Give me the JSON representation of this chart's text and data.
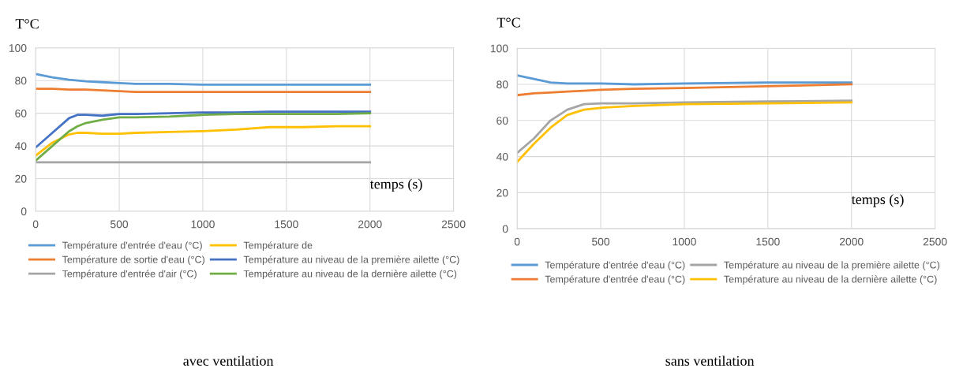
{
  "chart_data": [
    {
      "type": "line",
      "title": "avec ventilation",
      "ylabel": "T°C",
      "xlabel": "temps (s)",
      "xlim": [
        0,
        2500
      ],
      "xticks": [
        0,
        500,
        1000,
        1500,
        2000,
        2500
      ],
      "ylim": [
        0,
        100
      ],
      "yticks": [
        0,
        20,
        40,
        60,
        80,
        100
      ],
      "grid": true,
      "legend": "bottom",
      "marker": "none",
      "line_style": "solid",
      "x": [
        0,
        100,
        200,
        250,
        300,
        400,
        500,
        600,
        800,
        1000,
        1200,
        1400,
        1600,
        1800,
        2000
      ],
      "series": [
        {
          "name": "Température d'entrée d'eau (°C)",
          "color": "#5b9bd5",
          "values": [
            84,
            82,
            80.5,
            80,
            79.5,
            79,
            78.5,
            78,
            78,
            77.5,
            77.5,
            77.5,
            77.5,
            77.5,
            77.5
          ]
        },
        {
          "name": "Température de sortie d'eau (°C)",
          "color": "#ed7d31",
          "values": [
            75,
            75,
            74.5,
            74.5,
            74.5,
            74,
            73.5,
            73,
            73,
            73,
            73,
            73,
            73,
            73,
            73
          ]
        },
        {
          "name": "Température d'entrée d'air (°C)",
          "color": "#a5a5a5",
          "values": [
            30,
            30,
            30,
            30,
            30,
            30,
            30,
            30,
            30,
            30,
            30,
            30,
            30,
            30,
            30
          ]
        },
        {
          "name": "Température de",
          "color": "#ffc000",
          "values": [
            34,
            42,
            47,
            48,
            48,
            47.5,
            47.5,
            48,
            48.5,
            49,
            50,
            51.5,
            51.5,
            52,
            52
          ]
        },
        {
          "name": "Température au niveau de la première ailette (°C)",
          "color": "#4472c4",
          "values": [
            39,
            48,
            57,
            59,
            59,
            58.5,
            59.5,
            59.5,
            60,
            60.5,
            60.5,
            61,
            61,
            61,
            61
          ]
        },
        {
          "name": "Température au niveau de la dernière ailette (°C)",
          "color": "#70ad47",
          "values": [
            31,
            40,
            49,
            52,
            54,
            56,
            57.5,
            57.5,
            58,
            59,
            59.5,
            59.5,
            59.5,
            59.5,
            60
          ]
        }
      ]
    },
    {
      "type": "line",
      "title": "sans ventilation",
      "ylabel": "T°C",
      "xlabel": "temps (s)",
      "xlim": [
        0,
        2500
      ],
      "xticks": [
        0,
        500,
        1000,
        1500,
        2000,
        2500
      ],
      "ylim": [
        0,
        100
      ],
      "yticks": [
        0,
        20,
        40,
        60,
        80,
        100
      ],
      "grid": true,
      "legend": "bottom",
      "marker": "none",
      "line_style": "solid",
      "x": [
        0,
        100,
        200,
        300,
        400,
        500,
        700,
        1000,
        1500,
        2000
      ],
      "series": [
        {
          "name": "Température d'entrée d'eau (°C)",
          "color": "#5b9bd5",
          "values": [
            85,
            83,
            81,
            80.5,
            80.5,
            80.5,
            80,
            80.5,
            81,
            81
          ]
        },
        {
          "name": "Température d'entrée d'eau (°C)",
          "color": "#ed7d31",
          "values": [
            74,
            75,
            75.5,
            76,
            76.5,
            77,
            77.5,
            78,
            79,
            80
          ]
        },
        {
          "name": "Température au niveau de la première ailette (°C)",
          "color": "#a5a5a5",
          "values": [
            42,
            50,
            60,
            66,
            69,
            69.5,
            69.5,
            70,
            70.5,
            71
          ]
        },
        {
          "name": "Température au niveau de la dernière ailette (°C)",
          "color": "#ffc000",
          "values": [
            37,
            47,
            56,
            63,
            66,
            67,
            68,
            69,
            69.5,
            70
          ]
        }
      ]
    }
  ]
}
